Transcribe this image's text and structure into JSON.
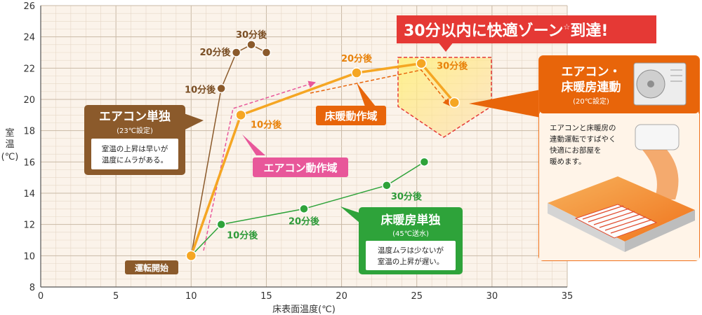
{
  "chart_data": {
    "type": "line",
    "xlabel": "床表面温度(℃)",
    "ylabel": "室温(℃)",
    "xlim": [
      0,
      35
    ],
    "ylim": [
      8,
      26
    ],
    "xticks": [
      0,
      5,
      10,
      15,
      20,
      25,
      30,
      35
    ],
    "yticks": [
      8,
      10,
      12,
      14,
      16,
      18,
      20,
      22,
      24,
      26
    ],
    "grid": true,
    "start_label": "運転開始",
    "series": [
      {
        "name": "エアコン単独",
        "subtitle": "(23℃設定)",
        "note": [
          "室温の上昇は早いが",
          "温度にムラがある。"
        ],
        "color": "#8B5A2B",
        "x": [
          10,
          12,
          13,
          14,
          15
        ],
        "y": [
          10,
          20.7,
          23,
          23.5,
          23
        ],
        "point_labels": [
          "",
          "10分後",
          "20分後",
          "30分後",
          ""
        ]
      },
      {
        "name": "床暖房単独",
        "subtitle": "(45℃送水)",
        "note": [
          "温度ムラは少ないが",
          "室温の上昇が遅い。"
        ],
        "color": "#2EA33A",
        "x": [
          10,
          12,
          17.5,
          23,
          25.5
        ],
        "y": [
          10,
          12,
          13,
          14.5,
          16
        ],
        "point_labels": [
          "",
          "10分後",
          "20分後",
          "30分後",
          ""
        ]
      },
      {
        "name": "エアコン・床暖房連動",
        "subtitle": "(20℃設定)",
        "note": [
          "エアコンと床暖房の",
          "連動運転ですばやく",
          "快適にお部屋を",
          "暖めます。"
        ],
        "color": "#F5A623",
        "x": [
          10,
          13.3,
          21,
          25.3,
          27.5
        ],
        "y": [
          10,
          19,
          21.7,
          22.3,
          19.8
        ],
        "point_labels": [
          "",
          "10分後",
          "20分後",
          "30分後",
          ""
        ]
      }
    ],
    "annotations": {
      "headline": "30分以内に快適ゾーン",
      "headline_star": "☆",
      "headline_tail": "到達!",
      "aircon_zone": "エアコン動作域",
      "floor_zone": "床暖動作域"
    }
  }
}
